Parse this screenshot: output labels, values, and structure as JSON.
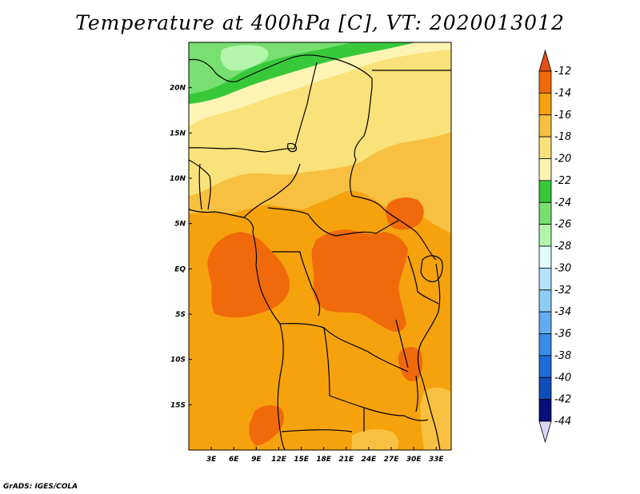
{
  "title": "Temperature at 400hPa [C], VT: 2020013012",
  "credit": "GrADS: IGES/COLA",
  "map": {
    "lon_range": [
      0,
      35
    ],
    "lat_range": [
      -20,
      25
    ],
    "lon_ticks": [
      {
        "value": 3,
        "label": "3E"
      },
      {
        "value": 6,
        "label": "6E"
      },
      {
        "value": 9,
        "label": "9E"
      },
      {
        "value": 12,
        "label": "12E"
      },
      {
        "value": 15,
        "label": "15E"
      },
      {
        "value": 18,
        "label": "18E"
      },
      {
        "value": 21,
        "label": "21E"
      },
      {
        "value": 24,
        "label": "24E"
      },
      {
        "value": 27,
        "label": "27E"
      },
      {
        "value": 30,
        "label": "30E"
      },
      {
        "value": 33,
        "label": "33E"
      }
    ],
    "lat_ticks": [
      {
        "value": 20,
        "label": "20N"
      },
      {
        "value": 15,
        "label": "15N"
      },
      {
        "value": 10,
        "label": "10N"
      },
      {
        "value": 5,
        "label": "5N"
      },
      {
        "value": 0,
        "label": "EQ"
      },
      {
        "value": -5,
        "label": "5S"
      },
      {
        "value": -10,
        "label": "10S"
      },
      {
        "value": -15,
        "label": "15S"
      }
    ]
  },
  "colorbar": {
    "levels": [
      "-12",
      "-14",
      "-16",
      "-18",
      "-20",
      "-22",
      "-24",
      "-26",
      "-28",
      "-30",
      "-32",
      "-34",
      "-36",
      "-38",
      "-40",
      "-42",
      "-44"
    ],
    "colors": [
      "#e54d16",
      "#f06a0c",
      "#f5a20c",
      "#f7c040",
      "#fae27a",
      "#fdf4b4",
      "#37c93a",
      "#77e070",
      "#b4f5ac",
      "#e0fbfc",
      "#b3e2fa",
      "#8cccf5",
      "#62adf0",
      "#3a8cea",
      "#1e6cd8",
      "#0f4eb8",
      "#09107a",
      "#dcd6f5"
    ]
  }
}
